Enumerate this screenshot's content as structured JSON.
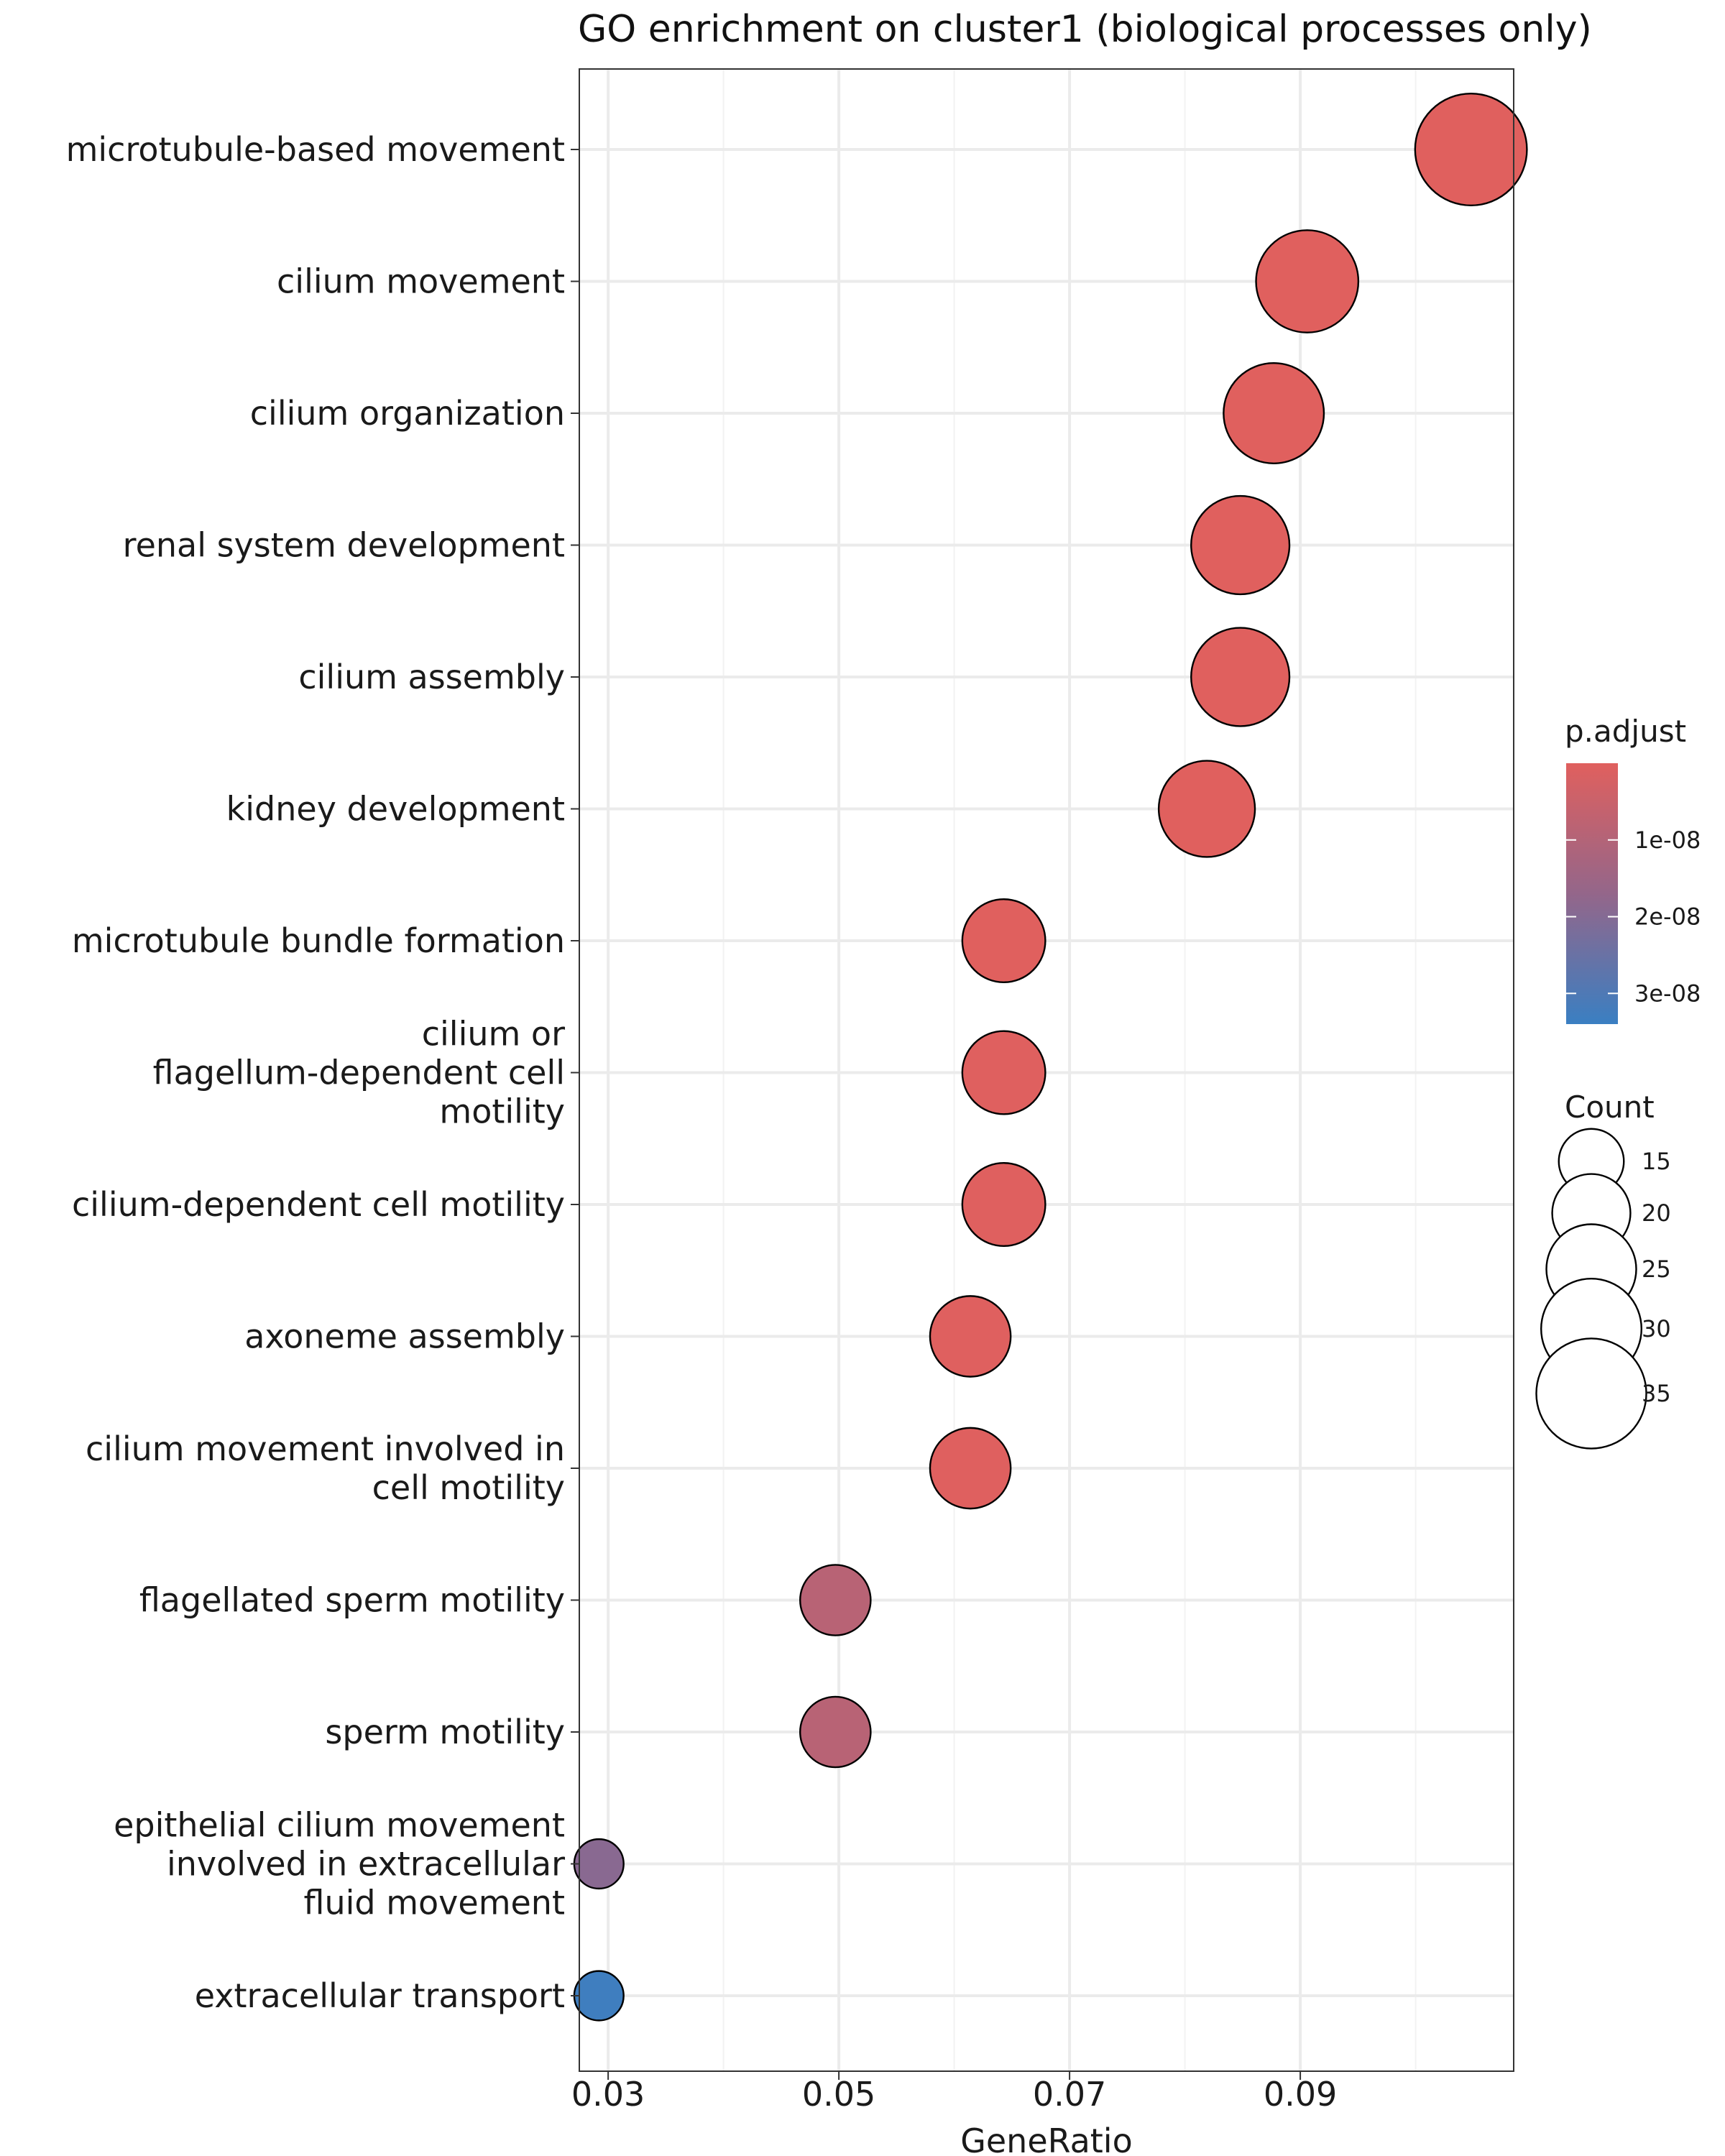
{
  "chart_data": {
    "type": "scatter",
    "title": "GO enrichment on cluster1 (biological processes only)",
    "xlabel": "GeneRatio",
    "ylabel": "",
    "xlim": [
      0.0275,
      0.1085
    ],
    "x_ticks": [
      "0.03",
      "0.05",
      "0.07",
      "0.09"
    ],
    "x_tick_values": [
      0.03,
      0.05,
      0.07,
      0.09
    ],
    "grid": true,
    "terms": [
      "microtubule-based movement",
      "cilium movement",
      "cilium organization",
      "renal system development",
      "cilium assembly",
      "kidney development",
      "microtubule bundle formation",
      "cilium or\nflagellum-dependent cell\nmotility",
      "cilium-dependent cell motility",
      "axoneme assembly",
      "cilium movement involved in\ncell motility",
      "flagellated sperm motility",
      "sperm motility",
      "epithelial cilium movement\ninvolved in extracellular\nfluid movement",
      "extracellular transport"
    ],
    "points": [
      {
        "term": "microtubule-based movement",
        "gene_ratio": 0.1048,
        "count": 36,
        "p_adjust": 1e-12
      },
      {
        "term": "cilium movement",
        "gene_ratio": 0.0906,
        "count": 31,
        "p_adjust": 1e-12
      },
      {
        "term": "cilium organization",
        "gene_ratio": 0.0877,
        "count": 30,
        "p_adjust": 1e-12
      },
      {
        "term": "renal system development",
        "gene_ratio": 0.0848,
        "count": 29,
        "p_adjust": 1e-12
      },
      {
        "term": "cilium assembly",
        "gene_ratio": 0.0848,
        "count": 29,
        "p_adjust": 1e-12
      },
      {
        "term": "kidney development",
        "gene_ratio": 0.0819,
        "count": 28,
        "p_adjust": 1e-12
      },
      {
        "term": "microtubule bundle formation",
        "gene_ratio": 0.0643,
        "count": 22,
        "p_adjust": 2e-11
      },
      {
        "term": "cilium or\nflagellum-dependent cell\nmotility",
        "gene_ratio": 0.0643,
        "count": 22,
        "p_adjust": 2e-10
      },
      {
        "term": "cilium-dependent cell motility",
        "gene_ratio": 0.0643,
        "count": 22,
        "p_adjust": 2e-10
      },
      {
        "term": "axoneme assembly",
        "gene_ratio": 0.0614,
        "count": 21,
        "p_adjust": 2e-10
      },
      {
        "term": "cilium movement involved in\ncell motility",
        "gene_ratio": 0.0614,
        "count": 21,
        "p_adjust": 3e-10
      },
      {
        "term": "flagellated sperm motility",
        "gene_ratio": 0.0497,
        "count": 17,
        "p_adjust": 9e-09
      },
      {
        "term": "sperm motility",
        "gene_ratio": 0.0497,
        "count": 17,
        "p_adjust": 9e-09
      },
      {
        "term": "epithelial cilium movement\ninvolved in extracellular\nfluid movement",
        "gene_ratio": 0.0292,
        "count": 10,
        "p_adjust": 1.9e-08
      },
      {
        "term": "extracellular transport",
        "gene_ratio": 0.0292,
        "count": 10,
        "p_adjust": 3.3e-08
      }
    ],
    "color_legend": {
      "title": "p.adjust",
      "low_color": "#E0605E",
      "mid_color": "#94668A",
      "high_color": "#3A7FC2",
      "min_value": 0,
      "max_value": 3.4e-08,
      "tick_labels": [
        "1e-08",
        "2e-08",
        "3e-08"
      ],
      "tick_values": [
        1e-08,
        2e-08,
        3e-08
      ]
    },
    "size_legend": {
      "title": "Count",
      "values": [
        15,
        20,
        25,
        30,
        35
      ],
      "labels": [
        "15",
        "20",
        "25",
        "30",
        "35"
      ]
    }
  }
}
